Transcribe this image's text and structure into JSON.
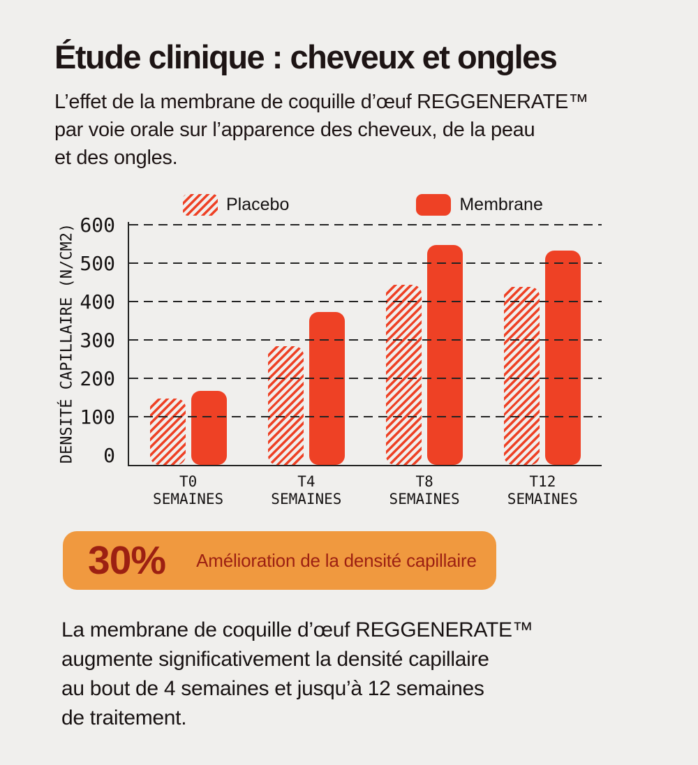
{
  "page": {
    "title": "Étude clinique : cheveux et ongles",
    "subtitle_lines": [
      "L’effet de la membrane de coquille d’œuf REGGENERATE™",
      "par voie orale sur l’apparence des cheveux, de la peau",
      "et des ongles."
    ]
  },
  "chart_data": {
    "type": "bar",
    "title": "",
    "xlabel": "",
    "ylabel": "DENSITÉ CAPILLAIRE (N/CM2)",
    "categories": [
      "T0",
      "T4",
      "T8",
      "T12"
    ],
    "category_sublabel": "SEMAINES",
    "series": [
      {
        "name": "Placebo",
        "style": "striped",
        "values": [
          150,
          285,
          445,
          440
        ]
      },
      {
        "name": "Membrane",
        "style": "solid",
        "values": [
          170,
          375,
          550,
          535
        ]
      }
    ],
    "yticks": [
      0,
      100,
      200,
      300,
      400,
      500,
      600
    ],
    "ylim": [
      0,
      600
    ],
    "grid": "horizontal dashed lines at each 100, drawn above bars",
    "legend_position": "top"
  },
  "callout": {
    "value": "30%",
    "label": "Amélioration de la densité capillaire"
  },
  "footer_lines": [
    "La membrane de coquille d’œuf REGGENERATE™",
    "augmente significativement la densité capillaire",
    "au bout de 4 semaines et jusqu’à 12 semaines",
    "de traitement."
  ],
  "colors": {
    "background": "#F0EFED",
    "red": "#EE4125",
    "orange": "#F0993F",
    "dark_red": "#9C2012",
    "text": "#1D1414",
    "axis": "#222222"
  }
}
